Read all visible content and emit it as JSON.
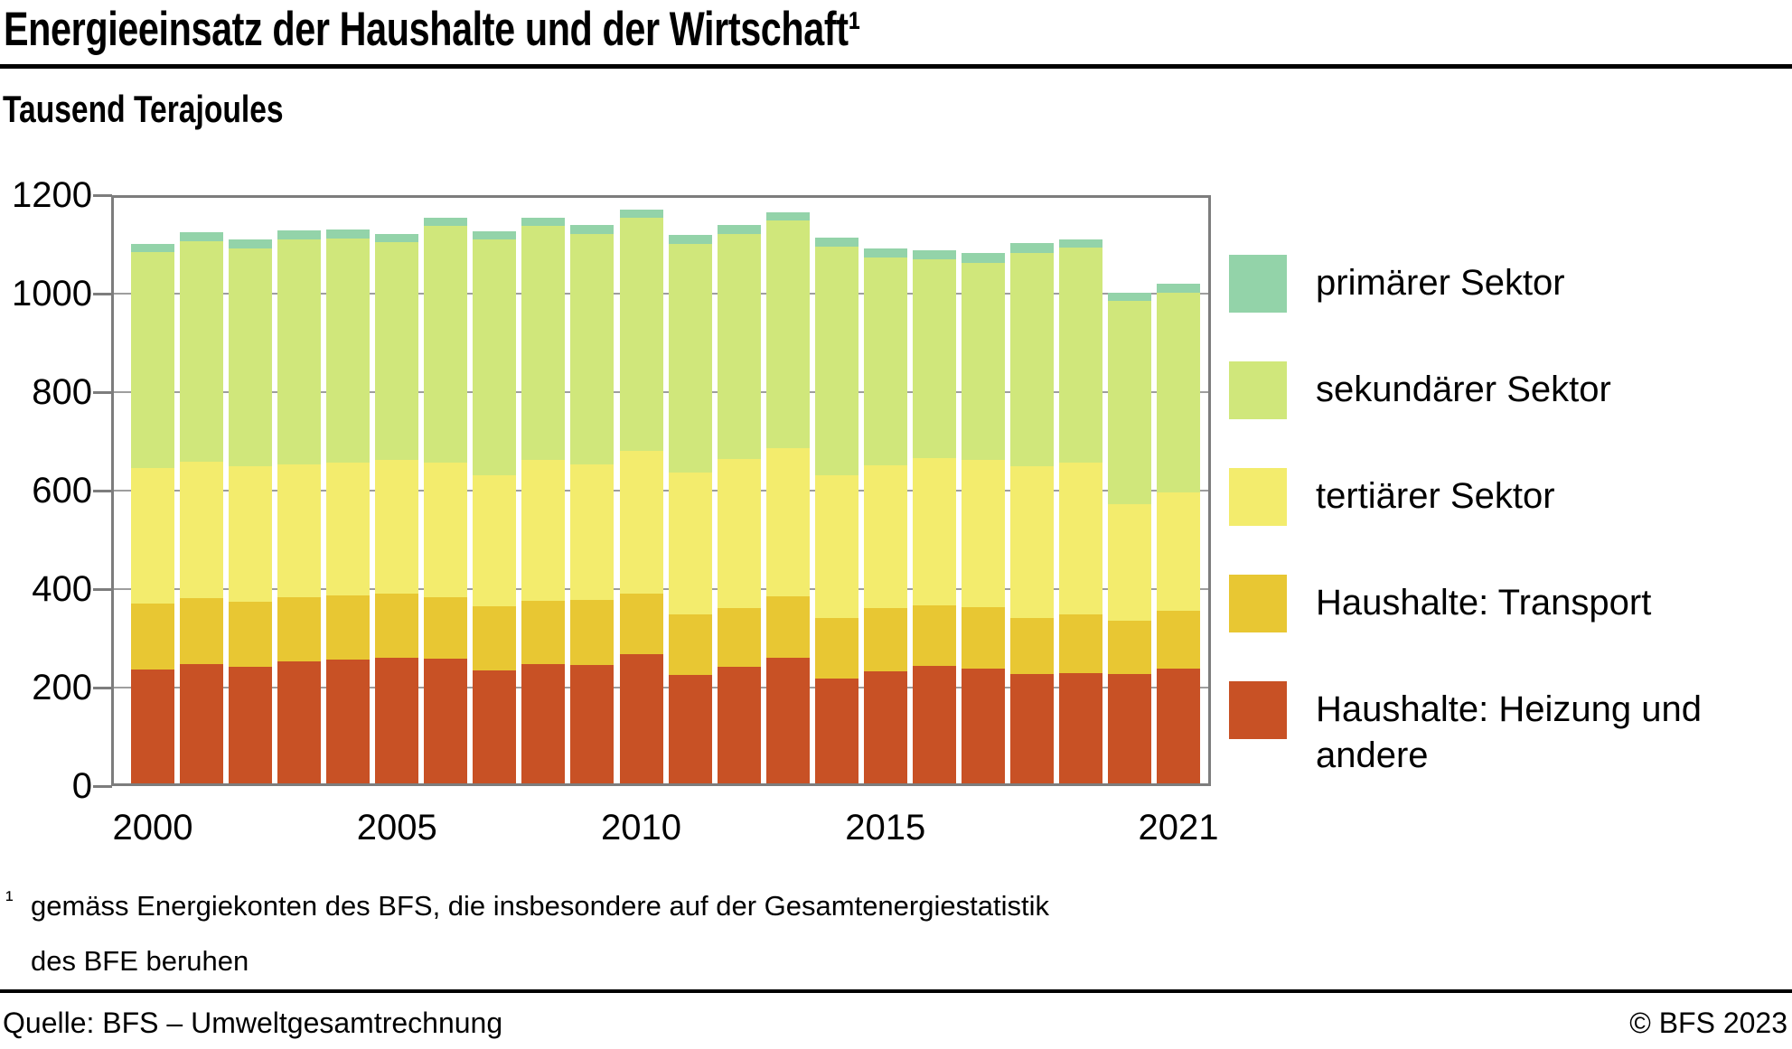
{
  "header": {
    "title": "Energieeinsatz der Haushalte und der Wirtschaft¹",
    "subtitle": "Tausend Terajoules"
  },
  "chart_data": {
    "type": "bar",
    "stacked": true,
    "title": "Energieeinsatz der Haushalte und der Wirtschaft",
    "unit_label": "Tausend Terajoules",
    "categories": [
      "2000",
      "2001",
      "2002",
      "2003",
      "2004",
      "2005",
      "2006",
      "2007",
      "2008",
      "2009",
      "2010",
      "2011",
      "2012",
      "2013",
      "2014",
      "2015",
      "2016",
      "2017",
      "2018",
      "2019",
      "2020",
      "2021"
    ],
    "visible_xtick_labels": [
      "2000",
      "2005",
      "2010",
      "2015",
      "2021"
    ],
    "ylim": [
      0,
      1200
    ],
    "yticks": [
      0,
      200,
      400,
      600,
      800,
      1000,
      1200
    ],
    "grid": true,
    "legend_position": "right",
    "series_bottom_to_top": [
      {
        "name": "Haushalte: Heizung und andere",
        "color": "#c85125",
        "values": [
          237,
          248,
          242,
          253,
          256,
          261,
          258,
          234,
          248,
          246,
          267,
          226,
          243,
          261,
          219,
          233,
          244,
          239,
          227,
          230,
          227,
          238
        ]
      },
      {
        "name": "Haushalte: Transport",
        "color": "#e8c733",
        "values": [
          133,
          134,
          132,
          131,
          132,
          129,
          126,
          131,
          128,
          132,
          123,
          122,
          119,
          125,
          123,
          128,
          123,
          124,
          115,
          118,
          109,
          118
        ]
      },
      {
        "name": "tertiärer Sektor",
        "color": "#f3ec6d",
        "values": [
          275,
          276,
          275,
          270,
          269,
          273,
          272,
          266,
          287,
          276,
          291,
          288,
          303,
          300,
          289,
          291,
          299,
          300,
          307,
          308,
          236,
          241
        ]
      },
      {
        "name": "sekundärer Sektor",
        "color": "#d0e77b",
        "values": [
          440,
          448,
          443,
          456,
          455,
          441,
          481,
          479,
          474,
          468,
          473,
          465,
          457,
          462,
          465,
          421,
          403,
          399,
          433,
          437,
          413,
          404
        ]
      },
      {
        "name": "primärer Sektor",
        "color": "#93d3a9",
        "values": [
          16,
          18,
          18,
          19,
          19,
          18,
          18,
          16,
          17,
          17,
          17,
          18,
          18,
          18,
          18,
          18,
          19,
          20,
          20,
          18,
          17,
          20
        ]
      }
    ],
    "legend_top_to_bottom": [
      "primärer Sektor",
      "sekundärer Sektor",
      "tertiärer Sektor",
      "Haushalte: Transport",
      "Haushalte: Heizung und andere"
    ],
    "colors": {
      "primaerer_sektor": "#93d3a9",
      "sekundaerer_sektor": "#d0e77b",
      "tertiaerer_sektor": "#f3ec6d",
      "haushalte_transport": "#e8c733",
      "haushalte_heizung": "#c85125",
      "gridline": "#9e9e9e",
      "plot_border": "#7d7d7d"
    }
  },
  "footnote": {
    "marker": "¹",
    "lines": [
      "gemäss Energiekonten des BFS, die insbesondere auf der Gesamtenergiestatistik",
      "des BFE beruhen"
    ]
  },
  "source": {
    "left": "Quelle: BFS – Umweltgesamtrechnung",
    "right": "© BFS 2023"
  }
}
